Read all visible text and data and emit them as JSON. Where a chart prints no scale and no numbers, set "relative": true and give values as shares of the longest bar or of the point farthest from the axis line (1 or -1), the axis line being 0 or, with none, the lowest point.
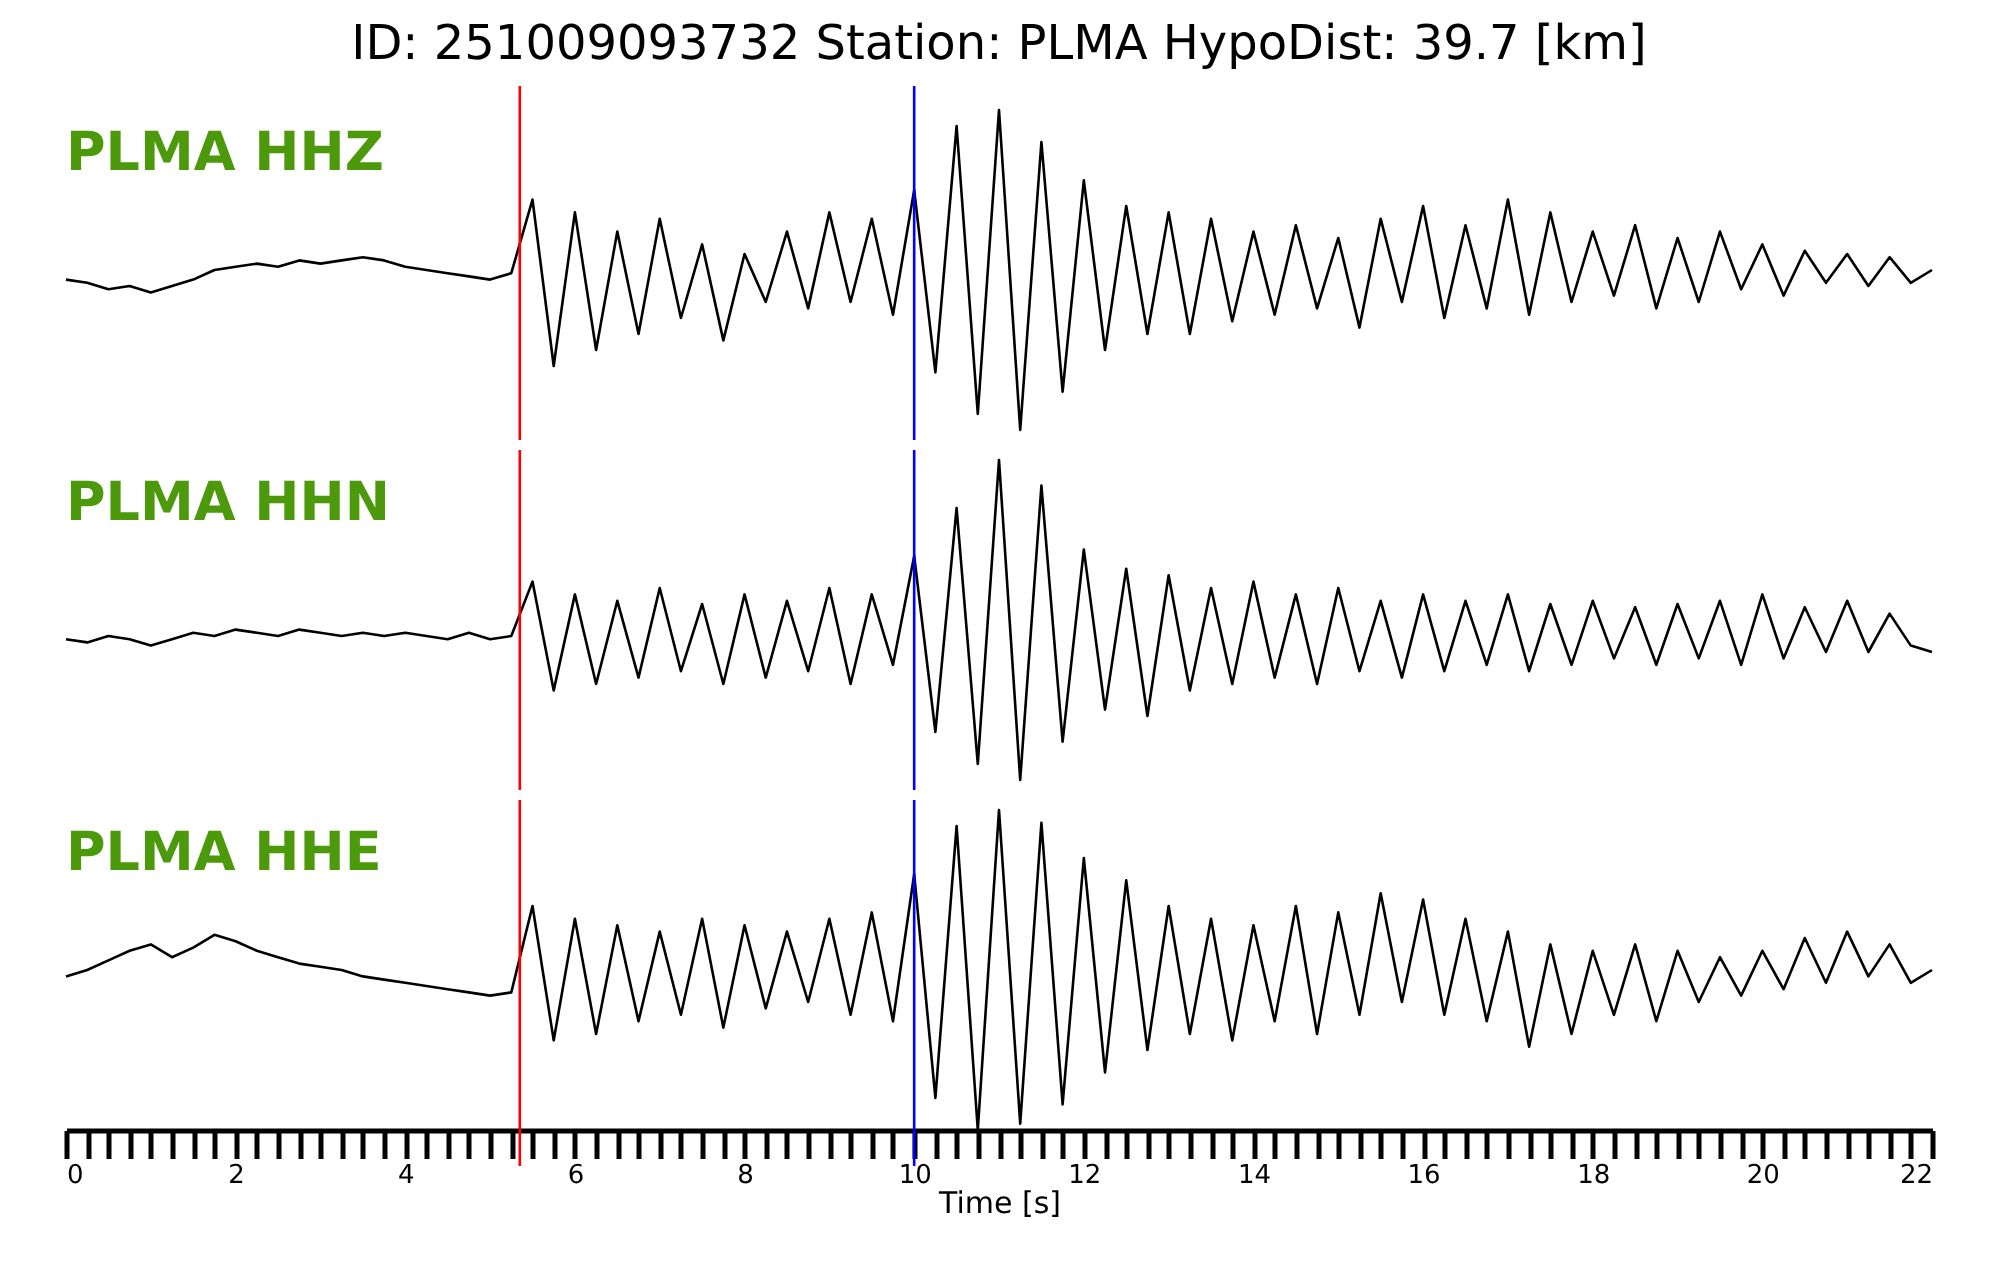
{
  "chart_data": [
    {
      "type": "line",
      "title": "ID: 251009093732   Station: PLMA   HypoDist:    39.7 [km]",
      "relative": true,
      "tick_labels": false,
      "xlim": [
        0,
        22
      ],
      "annotations": [
        "PLMA HHZ"
      ],
      "ref_lines": [
        {
          "axis": "x",
          "value": 5.35,
          "color": "#ff0000"
        },
        {
          "axis": "x",
          "value": 10,
          "color": "#0000ff"
        }
      ],
      "x": [
        0,
        0.25,
        0.5,
        0.75,
        1,
        1.25,
        1.5,
        1.75,
        2,
        2.25,
        2.5,
        2.75,
        3,
        3.25,
        3.5,
        3.75,
        4,
        4.25,
        4.5,
        4.75,
        5,
        5.25,
        5.5,
        5.75,
        6,
        6.25,
        6.5,
        6.75,
        7,
        7.25,
        7.5,
        7.75,
        8,
        8.25,
        8.5,
        8.75,
        9,
        9.25,
        9.5,
        9.75,
        10,
        10.25,
        10.5,
        10.75,
        11,
        11.25,
        11.5,
        11.75,
        12,
        12.25,
        12.5,
        12.75,
        13,
        13.25,
        13.5,
        13.75,
        14,
        14.25,
        14.5,
        14.75,
        15,
        15.25,
        15.5,
        15.75,
        16,
        16.25,
        16.5,
        16.75,
        17,
        17.25,
        17.5,
        17.75,
        18,
        18.25,
        18.5,
        18.75,
        19,
        19.25,
        19.5,
        19.75,
        20,
        20.25,
        20.5,
        20.75,
        21,
        21.25,
        21.5,
        21.75,
        22
      ],
      "series": [
        {
          "color": "#000000",
          "values": [
            0.47,
            0.46,
            0.44,
            0.45,
            0.43,
            0.45,
            0.47,
            0.5,
            0.51,
            0.52,
            0.51,
            0.53,
            0.52,
            0.53,
            0.54,
            0.53,
            0.51,
            0.5,
            0.49,
            0.48,
            0.47,
            0.49,
            0.72,
            0.2,
            0.68,
            0.25,
            0.62,
            0.3,
            0.66,
            0.35,
            0.58,
            0.28,
            0.55,
            0.4,
            0.62,
            0.38,
            0.68,
            0.4,
            0.66,
            0.36,
            0.75,
            0.18,
            0.95,
            0.05,
            1.0,
            0.0,
            0.9,
            0.12,
            0.78,
            0.25,
            0.7,
            0.3,
            0.68,
            0.3,
            0.66,
            0.34,
            0.62,
            0.36,
            0.64,
            0.38,
            0.6,
            0.32,
            0.66,
            0.4,
            0.7,
            0.35,
            0.64,
            0.38,
            0.72,
            0.36,
            0.68,
            0.4,
            0.62,
            0.42,
            0.64,
            0.38,
            0.6,
            0.4,
            0.62,
            0.44,
            0.58,
            0.42,
            0.56,
            0.46,
            0.55,
            0.45,
            0.54,
            0.46,
            0.5
          ]
        }
      ]
    },
    {
      "type": "line",
      "relative": true,
      "tick_labels": false,
      "xlim": [
        0,
        22
      ],
      "annotations": [
        "PLMA HHN"
      ],
      "ref_lines": [
        {
          "axis": "x",
          "value": 5.35,
          "color": "#ff0000"
        },
        {
          "axis": "x",
          "value": 10,
          "color": "#0000ff"
        }
      ],
      "x": [
        0,
        0.25,
        0.5,
        0.75,
        1,
        1.25,
        1.5,
        1.75,
        2,
        2.25,
        2.5,
        2.75,
        3,
        3.25,
        3.5,
        3.75,
        4,
        4.25,
        4.5,
        4.75,
        5,
        5.25,
        5.5,
        5.75,
        6,
        6.25,
        6.5,
        6.75,
        7,
        7.25,
        7.5,
        7.75,
        8,
        8.25,
        8.5,
        8.75,
        9,
        9.25,
        9.5,
        9.75,
        10,
        10.25,
        10.5,
        10.75,
        11,
        11.25,
        11.5,
        11.75,
        12,
        12.25,
        12.5,
        12.75,
        13,
        13.25,
        13.5,
        13.75,
        14,
        14.25,
        14.5,
        14.75,
        15,
        15.25,
        15.5,
        15.75,
        16,
        16.25,
        16.5,
        16.75,
        17,
        17.25,
        17.5,
        17.75,
        18,
        18.25,
        18.5,
        18.75,
        19,
        19.25,
        19.5,
        19.75,
        20,
        20.25,
        20.5,
        20.75,
        21,
        21.25,
        21.5,
        21.75,
        22
      ],
      "series": [
        {
          "color": "#000000",
          "values": [
            0.44,
            0.43,
            0.45,
            0.44,
            0.42,
            0.44,
            0.46,
            0.45,
            0.47,
            0.46,
            0.45,
            0.47,
            0.46,
            0.45,
            0.46,
            0.45,
            0.46,
            0.45,
            0.44,
            0.46,
            0.44,
            0.45,
            0.62,
            0.28,
            0.58,
            0.3,
            0.56,
            0.32,
            0.6,
            0.34,
            0.55,
            0.3,
            0.58,
            0.32,
            0.56,
            0.34,
            0.6,
            0.3,
            0.58,
            0.36,
            0.7,
            0.15,
            0.85,
            0.05,
            1.0,
            0.0,
            0.92,
            0.12,
            0.72,
            0.22,
            0.66,
            0.2,
            0.64,
            0.28,
            0.6,
            0.3,
            0.62,
            0.32,
            0.58,
            0.3,
            0.6,
            0.34,
            0.56,
            0.32,
            0.58,
            0.34,
            0.56,
            0.36,
            0.58,
            0.34,
            0.55,
            0.36,
            0.56,
            0.38,
            0.54,
            0.36,
            0.55,
            0.38,
            0.56,
            0.36,
            0.58,
            0.38,
            0.54,
            0.4,
            0.56,
            0.4,
            0.52,
            0.42,
            0.4
          ]
        }
      ]
    },
    {
      "type": "line",
      "relative": true,
      "tick_labels": "x",
      "xlabel": "Time [s]",
      "xlim": [
        0,
        22
      ],
      "xticks": [
        0,
        {
          "value": 0.25,
          "label": null
        },
        {
          "value": 0.5,
          "label": null
        },
        {
          "value": 0.75,
          "label": null
        },
        {
          "value": 1,
          "label": null
        },
        {
          "value": 1.25,
          "label": null
        },
        {
          "value": 1.5,
          "label": null
        },
        {
          "value": 1.75,
          "label": null
        },
        2,
        {
          "value": 2.25,
          "label": null
        },
        {
          "value": 2.5,
          "label": null
        },
        {
          "value": 2.75,
          "label": null
        },
        {
          "value": 3,
          "label": null
        },
        {
          "value": 3.25,
          "label": null
        },
        {
          "value": 3.5,
          "label": null
        },
        {
          "value": 3.75,
          "label": null
        },
        4,
        {
          "value": 4.25,
          "label": null
        },
        {
          "value": 4.5,
          "label": null
        },
        {
          "value": 4.75,
          "label": null
        },
        {
          "value": 5,
          "label": null
        },
        {
          "value": 5.25,
          "label": null
        },
        {
          "value": 5.5,
          "label": null
        },
        {
          "value": 5.75,
          "label": null
        },
        6,
        {
          "value": 6.25,
          "label": null
        },
        {
          "value": 6.5,
          "label": null
        },
        {
          "value": 6.75,
          "label": null
        },
        {
          "value": 7,
          "label": null
        },
        {
          "value": 7.25,
          "label": null
        },
        {
          "value": 7.5,
          "label": null
        },
        {
          "value": 7.75,
          "label": null
        },
        8,
        {
          "value": 8.25,
          "label": null
        },
        {
          "value": 8.5,
          "label": null
        },
        {
          "value": 8.75,
          "label": null
        },
        {
          "value": 9,
          "label": null
        },
        {
          "value": 9.25,
          "label": null
        },
        {
          "value": 9.5,
          "label": null
        },
        {
          "value": 9.75,
          "label": null
        },
        10,
        {
          "value": 10.25,
          "label": null
        },
        {
          "value": 10.5,
          "label": null
        },
        {
          "value": 10.75,
          "label": null
        },
        {
          "value": 11,
          "label": null
        },
        {
          "value": 11.25,
          "label": null
        },
        {
          "value": 11.5,
          "label": null
        },
        {
          "value": 11.75,
          "label": null
        },
        12,
        {
          "value": 12.25,
          "label": null
        },
        {
          "value": 12.5,
          "label": null
        },
        {
          "value": 12.75,
          "label": null
        },
        {
          "value": 13,
          "label": null
        },
        {
          "value": 13.25,
          "label": null
        },
        {
          "value": 13.5,
          "label": null
        },
        {
          "value": 13.75,
          "label": null
        },
        14,
        {
          "value": 14.25,
          "label": null
        },
        {
          "value": 14.5,
          "label": null
        },
        {
          "value": 14.75,
          "label": null
        },
        {
          "value": 15,
          "label": null
        },
        {
          "value": 15.25,
          "label": null
        },
        {
          "value": 15.5,
          "label": null
        },
        {
          "value": 15.75,
          "label": null
        },
        16,
        {
          "value": 16.25,
          "label": null
        },
        {
          "value": 16.5,
          "label": null
        },
        {
          "value": 16.75,
          "label": null
        },
        {
          "value": 17,
          "label": null
        },
        {
          "value": 17.25,
          "label": null
        },
        {
          "value": 17.5,
          "label": null
        },
        {
          "value": 17.75,
          "label": null
        },
        18,
        {
          "value": 18.25,
          "label": null
        },
        {
          "value": 18.5,
          "label": null
        },
        {
          "value": 18.75,
          "label": null
        },
        {
          "value": 19,
          "label": null
        },
        {
          "value": 19.25,
          "label": null
        },
        {
          "value": 19.5,
          "label": null
        },
        {
          "value": 19.75,
          "label": null
        },
        20,
        {
          "value": 20.25,
          "label": null
        },
        {
          "value": 20.5,
          "label": null
        },
        {
          "value": 20.75,
          "label": null
        },
        {
          "value": 21,
          "label": null
        },
        {
          "value": 21.25,
          "label": null
        },
        {
          "value": 21.5,
          "label": null
        },
        {
          "value": 21.75,
          "label": null
        },
        22
      ],
      "annotations": [
        "PLMA HHE"
      ],
      "ref_lines": [
        {
          "axis": "x",
          "value": 5.35,
          "color": "#ff0000"
        },
        {
          "axis": "x",
          "value": 10,
          "color": "#0000ff"
        }
      ],
      "x": [
        0,
        0.25,
        0.5,
        0.75,
        1,
        1.25,
        1.5,
        1.75,
        2,
        2.25,
        2.5,
        2.75,
        3,
        3.25,
        3.5,
        3.75,
        4,
        4.25,
        4.5,
        4.75,
        5,
        5.25,
        5.5,
        5.75,
        6,
        6.25,
        6.5,
        6.75,
        7,
        7.25,
        7.5,
        7.75,
        8,
        8.25,
        8.5,
        8.75,
        9,
        9.25,
        9.5,
        9.75,
        10,
        10.25,
        10.5,
        10.75,
        11,
        11.25,
        11.5,
        11.75,
        12,
        12.25,
        12.5,
        12.75,
        13,
        13.25,
        13.5,
        13.75,
        14,
        14.25,
        14.5,
        14.75,
        15,
        15.25,
        15.5,
        15.75,
        16,
        16.25,
        16.5,
        16.75,
        17,
        17.25,
        17.5,
        17.75,
        18,
        18.25,
        18.5,
        18.75,
        19,
        19.25,
        19.5,
        19.75,
        20,
        20.25,
        20.5,
        20.75,
        21,
        21.25,
        21.5,
        21.75,
        22
      ],
      "series": [
        {
          "color": "#000000",
          "values": [
            0.48,
            0.5,
            0.53,
            0.56,
            0.58,
            0.54,
            0.57,
            0.61,
            0.59,
            0.56,
            0.54,
            0.52,
            0.51,
            0.5,
            0.48,
            0.47,
            0.46,
            0.45,
            0.44,
            0.43,
            0.42,
            0.43,
            0.7,
            0.28,
            0.66,
            0.3,
            0.64,
            0.34,
            0.62,
            0.36,
            0.66,
            0.32,
            0.64,
            0.38,
            0.62,
            0.4,
            0.66,
            0.36,
            0.68,
            0.34,
            0.8,
            0.1,
            0.95,
            0.0,
            1.0,
            0.02,
            0.96,
            0.08,
            0.85,
            0.18,
            0.78,
            0.25,
            0.7,
            0.3,
            0.66,
            0.28,
            0.64,
            0.34,
            0.7,
            0.3,
            0.68,
            0.36,
            0.74,
            0.4,
            0.72,
            0.36,
            0.66,
            0.34,
            0.62,
            0.26,
            0.58,
            0.3,
            0.56,
            0.36,
            0.58,
            0.34,
            0.56,
            0.4,
            0.54,
            0.42,
            0.56,
            0.44,
            0.6,
            0.46,
            0.62,
            0.48,
            0.58,
            0.46,
            0.5
          ]
        }
      ]
    }
  ]
}
